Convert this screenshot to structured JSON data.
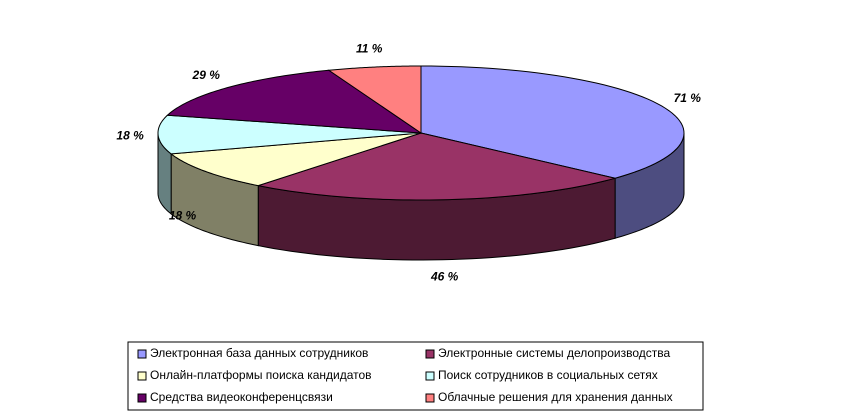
{
  "chart_data": {
    "type": "pie3d",
    "categories": [
      "Электронная база данных сотрудников",
      "Электронные системы делопроизводства",
      "Онлайн-платформы поиска кандидатов",
      "Поиск сотрудников в социальных сетях",
      "Средства видеоконференцсвязи",
      "Облачные решения для хранения данных"
    ],
    "values": [
      71,
      46,
      18,
      18,
      29,
      11
    ],
    "value_labels": [
      "71 %",
      "46 %",
      "18 %",
      "18 %",
      "29 %",
      "11 %"
    ],
    "colors": [
      "#9999ff",
      "#993366",
      "#ffffcc",
      "#ccffff",
      "#660066",
      "#ff8080"
    ],
    "legend": "bottom"
  }
}
